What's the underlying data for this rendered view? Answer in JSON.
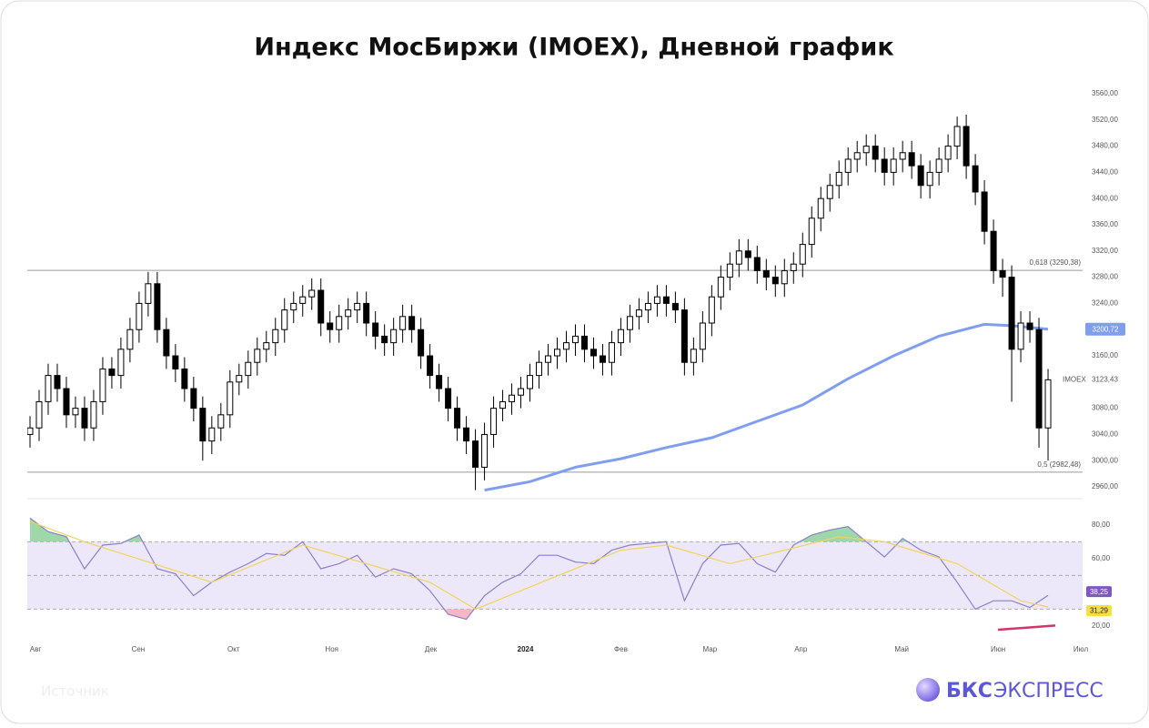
{
  "title": "Индекс МосБиржи (IMOEX), Дневной график",
  "footer": {
    "source": "Источник",
    "brand": [
      "БКС",
      "ЭКСПРЕСС"
    ]
  },
  "chart_data": [
    {
      "type": "candlestick",
      "name": "IMOEX",
      "up_color": "#ffffff",
      "down_color": "#000000",
      "xlim": [
        -0.3,
        115.8
      ],
      "ylim": [
        2942,
        3578
      ],
      "x": [
        0,
        1,
        2,
        3,
        4,
        5,
        6,
        7,
        8,
        9,
        10,
        11,
        12,
        13,
        14,
        15,
        16,
        17,
        18,
        19,
        20,
        21,
        22,
        23,
        24,
        25,
        26,
        27,
        28,
        29,
        30,
        31,
        32,
        33,
        34,
        35,
        36,
        37,
        38,
        39,
        40,
        41,
        42,
        43,
        44,
        45,
        46,
        47,
        48,
        49,
        50,
        51,
        52,
        53,
        54,
        55,
        56,
        57,
        58,
        59,
        60,
        61,
        62,
        63,
        64,
        65,
        66,
        67,
        68,
        69,
        70,
        71,
        72,
        73,
        74,
        75,
        76,
        77,
        78,
        79,
        80,
        81,
        82,
        83,
        84,
        85,
        86,
        87,
        88,
        89,
        90,
        91,
        92,
        93,
        94,
        95,
        96,
        97,
        98,
        99,
        100,
        101,
        102,
        103,
        104,
        105,
        106,
        107,
        108,
        109,
        110,
        111,
        112
      ],
      "open": [
        3040,
        3050,
        3090,
        3130,
        3110,
        3070,
        3080,
        3050,
        3090,
        3140,
        3130,
        3170,
        3200,
        3240,
        3270,
        3200,
        3160,
        3140,
        3110,
        3080,
        3030,
        3050,
        3070,
        3120,
        3130,
        3150,
        3170,
        3180,
        3200,
        3230,
        3240,
        3250,
        3260,
        3210,
        3200,
        3220,
        3230,
        3240,
        3210,
        3190,
        3180,
        3200,
        3220,
        3200,
        3160,
        3130,
        3110,
        3080,
        3050,
        3030,
        2990,
        3040,
        3080,
        3090,
        3100,
        3110,
        3130,
        3150,
        3160,
        3170,
        3180,
        3190,
        3170,
        3160,
        3150,
        3180,
        3200,
        3220,
        3230,
        3240,
        3250,
        3240,
        3230,
        3150,
        3170,
        3210,
        3250,
        3280,
        3300,
        3320,
        3310,
        3290,
        3280,
        3270,
        3290,
        3300,
        3330,
        3370,
        3400,
        3420,
        3440,
        3460,
        3470,
        3480,
        3460,
        3440,
        3460,
        3470,
        3450,
        3420,
        3440,
        3460,
        3480,
        3510,
        3450,
        3410,
        3350,
        3290,
        3280,
        3170,
        3210,
        3200,
        3050
      ],
      "high": [
        3068,
        3108,
        3148,
        3148,
        3128,
        3098,
        3098,
        3108,
        3158,
        3158,
        3188,
        3218,
        3258,
        3288,
        3288,
        3218,
        3178,
        3158,
        3128,
        3098,
        3068,
        3088,
        3138,
        3148,
        3168,
        3188,
        3198,
        3218,
        3248,
        3258,
        3268,
        3278,
        3278,
        3228,
        3238,
        3248,
        3258,
        3258,
        3228,
        3208,
        3218,
        3238,
        3238,
        3218,
        3178,
        3148,
        3128,
        3098,
        3068,
        3048,
        3058,
        3098,
        3108,
        3118,
        3128,
        3148,
        3168,
        3178,
        3188,
        3198,
        3208,
        3208,
        3188,
        3178,
        3198,
        3218,
        3238,
        3248,
        3258,
        3268,
        3268,
        3258,
        3248,
        3188,
        3228,
        3268,
        3298,
        3318,
        3338,
        3338,
        3328,
        3308,
        3298,
        3308,
        3318,
        3348,
        3388,
        3418,
        3438,
        3458,
        3478,
        3488,
        3498,
        3498,
        3478,
        3478,
        3488,
        3488,
        3468,
        3458,
        3478,
        3498,
        3525,
        3528,
        3468,
        3428,
        3368,
        3308,
        3298,
        3228,
        3228,
        3218,
        3140
      ],
      "low": [
        3020,
        3030,
        3070,
        3090,
        3050,
        3050,
        3030,
        3030,
        3070,
        3110,
        3110,
        3150,
        3180,
        3220,
        3180,
        3140,
        3120,
        3090,
        3060,
        3000,
        3010,
        3030,
        3050,
        3100,
        3110,
        3130,
        3150,
        3160,
        3180,
        3210,
        3220,
        3230,
        3190,
        3180,
        3180,
        3200,
        3210,
        3190,
        3170,
        3160,
        3160,
        3180,
        3180,
        3140,
        3110,
        3090,
        3060,
        3030,
        3010,
        2955,
        2970,
        3020,
        3060,
        3070,
        3080,
        3090,
        3110,
        3130,
        3140,
        3150,
        3160,
        3150,
        3140,
        3130,
        3130,
        3160,
        3180,
        3200,
        3210,
        3220,
        3220,
        3210,
        3130,
        3130,
        3150,
        3190,
        3230,
        3260,
        3280,
        3290,
        3270,
        3260,
        3250,
        3250,
        3270,
        3280,
        3310,
        3350,
        3380,
        3400,
        3420,
        3440,
        3450,
        3440,
        3420,
        3420,
        3440,
        3430,
        3400,
        3400,
        3420,
        3440,
        3460,
        3430,
        3390,
        3330,
        3270,
        3250,
        3090,
        3150,
        3180,
        3020,
        3000
      ],
      "close": [
        3050,
        3090,
        3130,
        3110,
        3070,
        3080,
        3050,
        3090,
        3140,
        3130,
        3170,
        3200,
        3240,
        3270,
        3200,
        3160,
        3140,
        3110,
        3080,
        3030,
        3050,
        3070,
        3120,
        3130,
        3150,
        3170,
        3180,
        3200,
        3230,
        3240,
        3250,
        3260,
        3210,
        3200,
        3220,
        3230,
        3240,
        3210,
        3190,
        3180,
        3200,
        3220,
        3200,
        3160,
        3130,
        3110,
        3080,
        3050,
        3030,
        2990,
        3040,
        3080,
        3090,
        3100,
        3110,
        3130,
        3150,
        3160,
        3170,
        3180,
        3190,
        3170,
        3160,
        3150,
        3180,
        3200,
        3220,
        3230,
        3240,
        3250,
        3240,
        3230,
        3150,
        3170,
        3210,
        3250,
        3280,
        3300,
        3320,
        3310,
        3290,
        3280,
        3270,
        3290,
        3300,
        3330,
        3370,
        3400,
        3420,
        3440,
        3460,
        3470,
        3480,
        3460,
        3440,
        3460,
        3470,
        3450,
        3420,
        3440,
        3460,
        3480,
        3510,
        3450,
        3410,
        3350,
        3290,
        3280,
        3170,
        3210,
        3200,
        3050,
        3123.43
      ],
      "last_label": "3123,43",
      "lines": [
        {
          "color": "#7f9ef0",
          "x": [
            50,
            55,
            60,
            65,
            70,
            75,
            80,
            85,
            90,
            95,
            100,
            105,
            108,
            112
          ],
          "values": [
            2955,
            2968,
            2990,
            3003,
            3020,
            3035,
            3060,
            3085,
            3125,
            3160,
            3190,
            3208,
            3206,
            3200.72
          ],
          "last_label": "3200,72"
        }
      ],
      "levels": [
        {
          "value": 3290.38,
          "label": "0,618 (3290,38)"
        },
        {
          "value": 2982.48,
          "label": "0,5 (2982,48)"
        }
      ],
      "yticks": [
        {
          "value": 3560,
          "label": "3560,00"
        },
        {
          "value": 3520,
          "label": "3520,00"
        },
        {
          "value": 3480,
          "label": "3480,00"
        },
        {
          "value": 3440,
          "label": "3440,00"
        },
        {
          "value": 3400,
          "label": "3400,00"
        },
        {
          "value": 3360,
          "label": "3360,00"
        },
        {
          "value": 3320,
          "label": "3320,00"
        },
        {
          "value": 3280,
          "label": "3280,00"
        },
        {
          "value": 3240,
          "label": "3240,00"
        },
        {
          "value": 3200,
          "label": "3200,00"
        },
        {
          "value": 3160,
          "label": "3160,00"
        },
        {
          "value": 3080,
          "label": "3080,00"
        },
        {
          "value": 3040,
          "label": "3040,00"
        },
        {
          "value": 3000,
          "label": "3000,00"
        },
        {
          "value": 2960,
          "label": "2960,00"
        }
      ]
    },
    {
      "type": "line",
      "xlim": [
        -0.3,
        115.8
      ],
      "ylim": [
        13.5,
        88
      ],
      "band": [
        30,
        70
      ],
      "band_color": "#ece8f9",
      "levels": [
        70,
        50,
        30
      ],
      "yticks": [
        {
          "value": 80,
          "label": "80,00"
        },
        {
          "value": 60,
          "label": "60,00"
        },
        {
          "value": 20,
          "label": "20,00"
        }
      ],
      "xticks": [
        {
          "value": 0.6,
          "label": "Авг"
        },
        {
          "value": 11.9,
          "label": "Сен"
        },
        {
          "value": 22.4,
          "label": "Окт"
        },
        {
          "value": 33.2,
          "label": "Ноя"
        },
        {
          "value": 44.1,
          "label": "Дек"
        },
        {
          "value": 54.5,
          "label": "2024"
        },
        {
          "value": 65,
          "label": "Фев"
        },
        {
          "value": 74.8,
          "label": "Мар"
        },
        {
          "value": 84.8,
          "label": "Апр"
        },
        {
          "value": 95.9,
          "label": "Май"
        },
        {
          "value": 106.5,
          "label": "Июн"
        },
        {
          "value": 115.6,
          "label": "Июл"
        }
      ],
      "series": [
        {
          "color": "#8a80cc",
          "badge": "#7e57c2",
          "x": [
            0,
            2,
            4,
            6,
            8,
            10,
            12,
            14,
            16,
            18,
            20,
            22,
            24,
            26,
            28,
            30,
            32,
            34,
            36,
            38,
            40,
            42,
            44,
            46,
            48,
            50,
            52,
            54,
            56,
            58,
            60,
            62,
            64,
            66,
            68,
            70,
            72,
            74,
            76,
            78,
            80,
            82,
            84,
            86,
            88,
            90,
            92,
            94,
            96,
            98,
            100,
            102,
            104,
            106,
            108,
            110,
            112
          ],
          "values": [
            84,
            76,
            73,
            54,
            68,
            69,
            74,
            54,
            51,
            38,
            46,
            52,
            57,
            63,
            62,
            70,
            54,
            57,
            62,
            49,
            54,
            51,
            41,
            27,
            24,
            38,
            46,
            51,
            62,
            62,
            58,
            57,
            65,
            68,
            69,
            70,
            35,
            57,
            68,
            69,
            57,
            52,
            68,
            74,
            77,
            79,
            70,
            61,
            72,
            65,
            61,
            46,
            30,
            35,
            35,
            31,
            38.25
          ],
          "last_label": "38,25"
        },
        {
          "color": "#f2d35a",
          "badge": "#f5e040",
          "x": [
            0,
            6,
            20,
            30,
            44,
            49,
            65,
            70,
            77,
            89,
            94,
            102,
            109,
            112
          ],
          "values": [
            82,
            70,
            46,
            68,
            46,
            30,
            65,
            68,
            57,
            73,
            70,
            57,
            35,
            31.29
          ],
          "last_label": "31,29"
        }
      ],
      "divergence": {
        "color": "#d6336c",
        "x": [
          106.5,
          112.8
        ],
        "values": [
          17.8,
          20.3
        ]
      }
    }
  ]
}
